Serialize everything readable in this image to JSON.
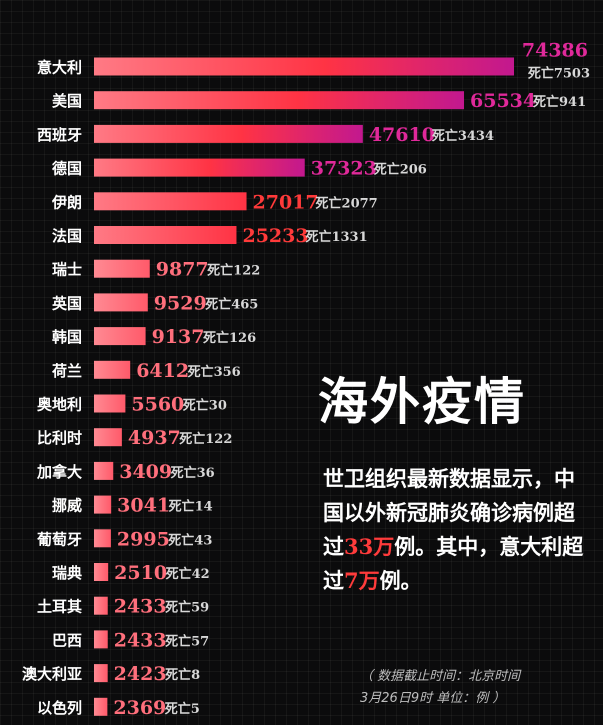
{
  "chart_data": {
    "type": "bar",
    "orientation": "horizontal",
    "categories": [
      "意大利",
      "美国",
      "西班牙",
      "德国",
      "伊朗",
      "法国",
      "瑞士",
      "英国",
      "韩国",
      "荷兰",
      "奥地利",
      "比利时",
      "加拿大",
      "挪威",
      "葡萄牙",
      "瑞典",
      "土耳其",
      "巴西",
      "澳大利亚",
      "以色列"
    ],
    "values": [
      74386,
      65534,
      47610,
      37323,
      27017,
      25233,
      9877,
      9529,
      9137,
      6412,
      5560,
      4937,
      3409,
      3041,
      2995,
      2510,
      2433,
      2433,
      2423,
      2369
    ],
    "death_labels": [
      "死亡7503",
      "死亡941",
      "死亡3434",
      "死亡206",
      "死亡2077",
      "死亡1331",
      "死亡122",
      "死亡465",
      "死亡126",
      "死亡356",
      "死亡30",
      "死亡122",
      "死亡36",
      "死亡14",
      "死亡43",
      "死亡42",
      "死亡59",
      "死亡57",
      "死亡8",
      "死亡5"
    ],
    "deaths": [
      7503,
      941,
      3434,
      206,
      2077,
      1331,
      122,
      465,
      126,
      356,
      30,
      122,
      36,
      14,
      43,
      42,
      59,
      57,
      8,
      5
    ],
    "xlim": [
      0,
      74386
    ],
    "colors": {
      "bar_start": "#ff7a85",
      "bar_mid": "#ff3344",
      "bar_end": "#c2188f",
      "value_high": "#e0299a",
      "value_mid": "#ff3a3a",
      "value_low": "#ff6f7c"
    }
  },
  "headline": "海外疫情",
  "description": {
    "part1": "世卫组织最新数据显示，中国以外新冠肺炎确诊病例超过",
    "num1": "33万",
    "part2": "例。其中，意大利超过",
    "num2": "7万",
    "part3": "例。"
  },
  "note": {
    "line1": "（ 数据截止时间：北京时间",
    "line2": "3月26日9时  单位：例 ）"
  }
}
